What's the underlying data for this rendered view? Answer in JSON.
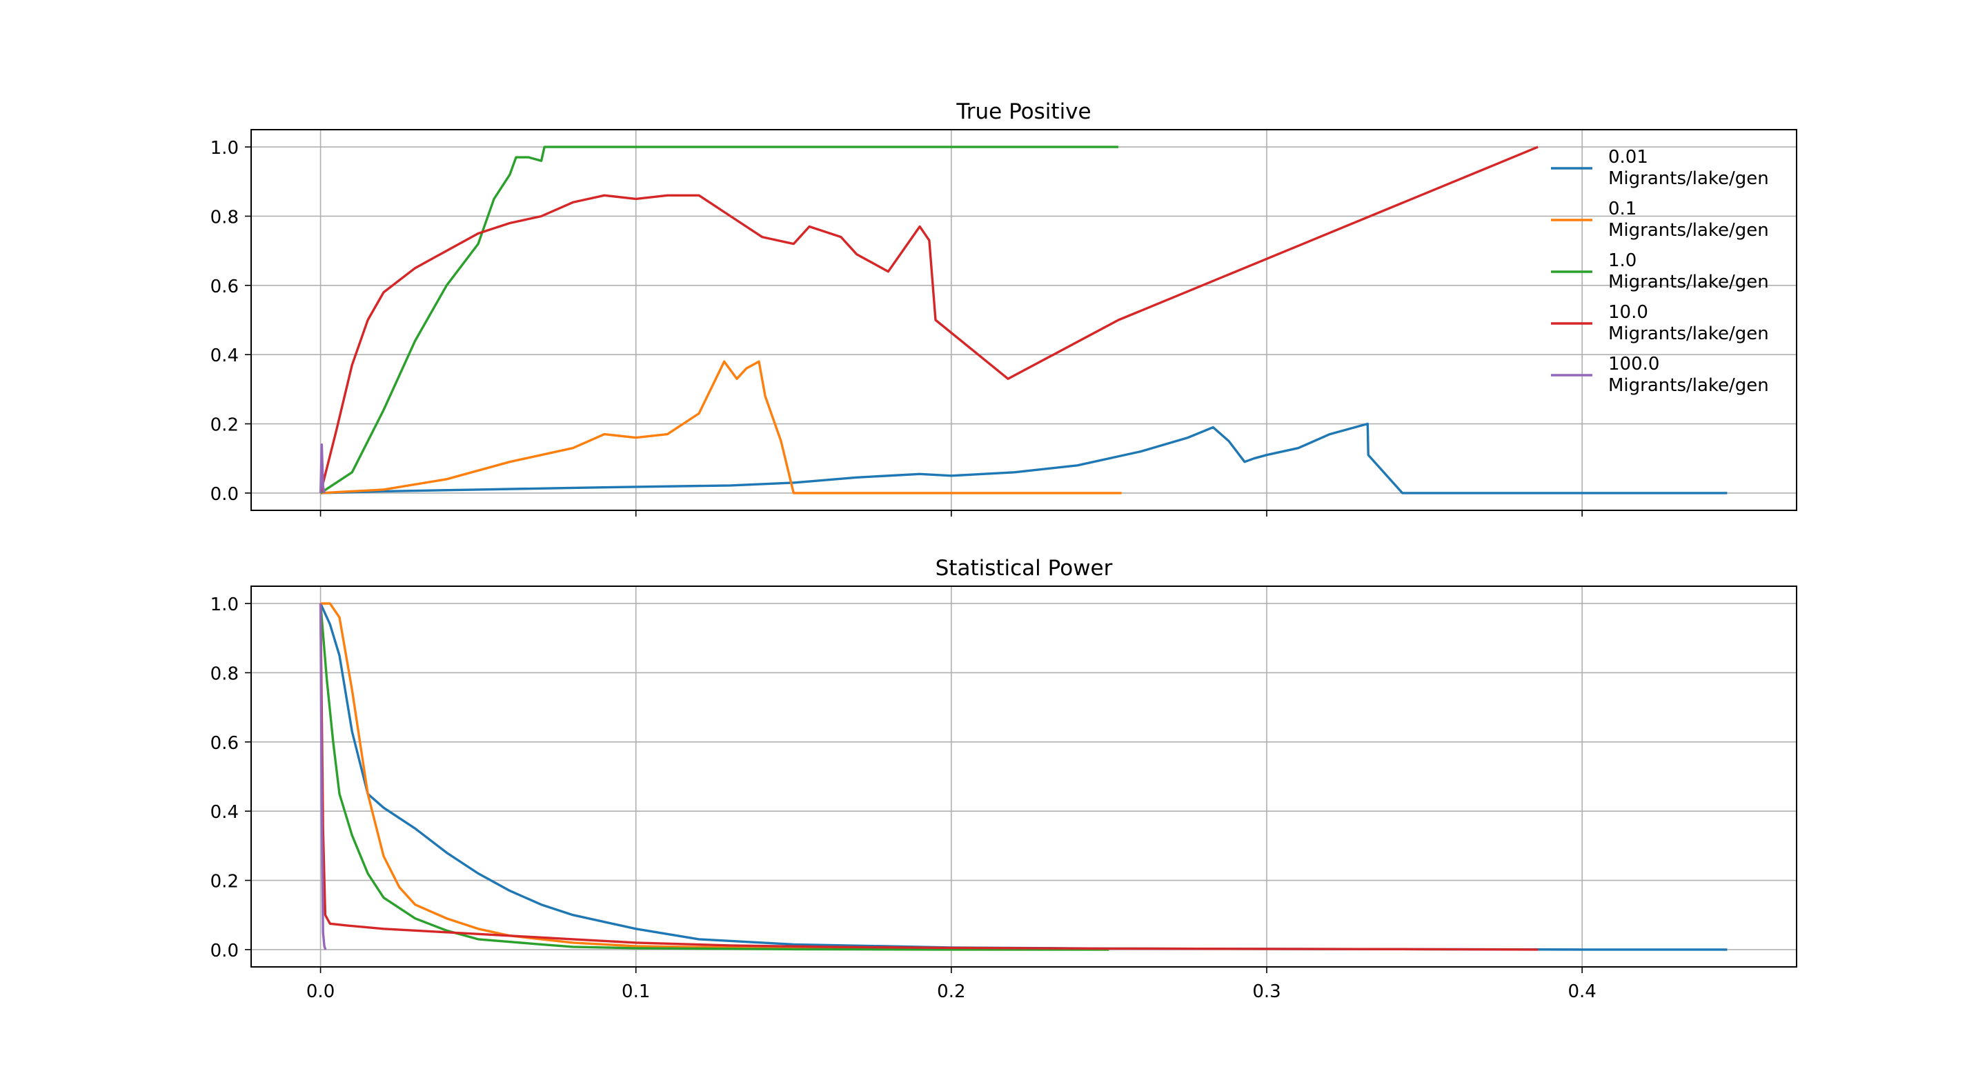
{
  "chart_data": [
    {
      "type": "line",
      "title": "True Positive",
      "xlabel": "",
      "ylabel": "",
      "xlim": [
        -0.022,
        0.468
      ],
      "ylim": [
        -0.05,
        1.05
      ],
      "xticks": [
        0.0,
        0.1,
        0.2,
        0.3,
        0.4
      ],
      "yticks": [
        "0.0",
        "0.2",
        "0.4",
        "0.6",
        "0.8",
        "1.0"
      ],
      "show_xtick_labels": false,
      "grid": true,
      "legend": "upper right",
      "series": [
        {
          "name": "0.01\nMigrants/lake/gen",
          "color": "#1f77b4",
          "x": [
            0.0,
            0.02,
            0.05,
            0.08,
            0.1,
            0.13,
            0.15,
            0.17,
            0.19,
            0.2,
            0.22,
            0.24,
            0.26,
            0.275,
            0.283,
            0.288,
            0.293,
            0.296,
            0.3,
            0.31,
            0.32,
            0.332,
            0.3322,
            0.343,
            0.38,
            0.446
          ],
          "y": [
            0.0,
            0.005,
            0.01,
            0.015,
            0.018,
            0.022,
            0.03,
            0.045,
            0.055,
            0.05,
            0.06,
            0.08,
            0.12,
            0.16,
            0.19,
            0.15,
            0.09,
            0.1,
            0.11,
            0.13,
            0.17,
            0.2,
            0.11,
            0.0,
            0.0,
            0.0
          ]
        },
        {
          "name": "0.1\nMigrants/lake/gen",
          "color": "#ff7f0e",
          "x": [
            0.0,
            0.02,
            0.04,
            0.06,
            0.08,
            0.09,
            0.1,
            0.11,
            0.12,
            0.128,
            0.132,
            0.135,
            0.139,
            0.141,
            0.146,
            0.15,
            0.2,
            0.254
          ],
          "y": [
            0.0,
            0.01,
            0.04,
            0.09,
            0.13,
            0.17,
            0.16,
            0.17,
            0.23,
            0.38,
            0.33,
            0.36,
            0.38,
            0.28,
            0.15,
            0.0,
            0.0,
            0.0
          ]
        },
        {
          "name": "1.0\nMigrants/lake/gen",
          "color": "#2ca02c",
          "x": [
            0.0,
            0.01,
            0.02,
            0.03,
            0.04,
            0.05,
            0.055,
            0.06,
            0.062,
            0.066,
            0.07,
            0.071,
            0.1,
            0.2,
            0.253
          ],
          "y": [
            0.0,
            0.06,
            0.24,
            0.44,
            0.6,
            0.72,
            0.85,
            0.92,
            0.97,
            0.97,
            0.96,
            1.0,
            1.0,
            1.0,
            1.0
          ]
        },
        {
          "name": "10.0\nMigrants/lake/gen",
          "color": "#d62728",
          "x": [
            0.0,
            0.005,
            0.01,
            0.015,
            0.02,
            0.03,
            0.04,
            0.05,
            0.06,
            0.07,
            0.08,
            0.09,
            0.1,
            0.11,
            0.12,
            0.13,
            0.14,
            0.15,
            0.155,
            0.165,
            0.17,
            0.18,
            0.19,
            0.193,
            0.195,
            0.218,
            0.253,
            0.386
          ],
          "y": [
            0.0,
            0.18,
            0.37,
            0.5,
            0.58,
            0.65,
            0.7,
            0.75,
            0.78,
            0.8,
            0.84,
            0.86,
            0.85,
            0.86,
            0.86,
            0.8,
            0.74,
            0.72,
            0.77,
            0.74,
            0.69,
            0.64,
            0.77,
            0.73,
            0.5,
            0.33,
            0.5,
            1.0
          ]
        },
        {
          "name": "100.0\nMigrants/lake/gen",
          "color": "#9467bd",
          "x": [
            0.0,
            0.0004,
            0.0008,
            0.0012
          ],
          "y": [
            0.0,
            0.14,
            0.02,
            0.0
          ]
        }
      ]
    },
    {
      "type": "line",
      "title": "Statistical Power",
      "xlabel": "",
      "ylabel": "",
      "xlim": [
        -0.022,
        0.468
      ],
      "ylim": [
        -0.05,
        1.05
      ],
      "xticks": [
        0.0,
        0.1,
        0.2,
        0.3,
        0.4
      ],
      "xtick_labels": [
        "0.0",
        "0.1",
        "0.2",
        "0.3",
        "0.4"
      ],
      "yticks": [
        "0.0",
        "0.2",
        "0.4",
        "0.6",
        "0.8",
        "1.0"
      ],
      "grid": true,
      "series": [
        {
          "name": "0.01\nMigrants/lake/gen",
          "color": "#1f77b4",
          "x": [
            0.0,
            0.003,
            0.006,
            0.01,
            0.015,
            0.02,
            0.03,
            0.04,
            0.05,
            0.06,
            0.07,
            0.08,
            0.1,
            0.12,
            0.15,
            0.2,
            0.25,
            0.3,
            0.35,
            0.4,
            0.446
          ],
          "y": [
            1.0,
            0.94,
            0.85,
            0.63,
            0.45,
            0.41,
            0.35,
            0.28,
            0.22,
            0.17,
            0.13,
            0.1,
            0.06,
            0.03,
            0.015,
            0.006,
            0.003,
            0.002,
            0.001,
            0.0,
            0.0
          ]
        },
        {
          "name": "0.1\nMigrants/lake/gen",
          "color": "#ff7f0e",
          "x": [
            0.0,
            0.003,
            0.006,
            0.01,
            0.015,
            0.02,
            0.025,
            0.03,
            0.04,
            0.05,
            0.06,
            0.08,
            0.1,
            0.15,
            0.2,
            0.25
          ],
          "y": [
            1.0,
            1.0,
            0.96,
            0.75,
            0.45,
            0.27,
            0.18,
            0.13,
            0.09,
            0.06,
            0.04,
            0.02,
            0.01,
            0.003,
            0.001,
            0.0
          ]
        },
        {
          "name": "1.0\nMigrants/lake/gen",
          "color": "#2ca02c",
          "x": [
            0.0,
            0.002,
            0.004,
            0.006,
            0.01,
            0.015,
            0.02,
            0.03,
            0.04,
            0.05,
            0.07,
            0.08,
            0.1,
            0.15,
            0.2,
            0.25
          ],
          "y": [
            1.0,
            0.78,
            0.6,
            0.45,
            0.33,
            0.22,
            0.15,
            0.09,
            0.055,
            0.03,
            0.015,
            0.008,
            0.004,
            0.001,
            0.0,
            0.0
          ]
        },
        {
          "name": "10.0\nMigrants/lake/gen",
          "color": "#d62728",
          "x": [
            0.0,
            0.0008,
            0.0015,
            0.003,
            0.008,
            0.02,
            0.04,
            0.06,
            0.08,
            0.1,
            0.13,
            0.16,
            0.2,
            0.25,
            0.3,
            0.35,
            0.386
          ],
          "y": [
            1.0,
            0.35,
            0.1,
            0.075,
            0.07,
            0.06,
            0.05,
            0.04,
            0.03,
            0.02,
            0.012,
            0.008,
            0.005,
            0.003,
            0.002,
            0.001,
            0.0
          ]
        },
        {
          "name": "100.0\nMigrants/lake/gen",
          "color": "#9467bd",
          "x": [
            0.0,
            0.0004,
            0.0008,
            0.0012,
            0.0016
          ],
          "y": [
            1.0,
            0.4,
            0.05,
            0.01,
            0.0
          ]
        }
      ]
    }
  ]
}
